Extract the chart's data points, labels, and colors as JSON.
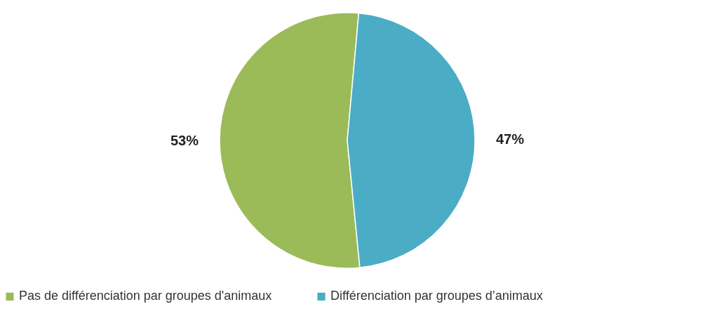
{
  "chart_data": {
    "type": "pie",
    "categories": [
      "Pas de différenciation par groupes d'animaux",
      "Différenciation par groupes d’animaux"
    ],
    "values": [
      53,
      47
    ],
    "colors": [
      "#9bbb59",
      "#4bacc6"
    ],
    "value_labels": [
      "53%",
      "47%"
    ],
    "legend": "bottom"
  }
}
